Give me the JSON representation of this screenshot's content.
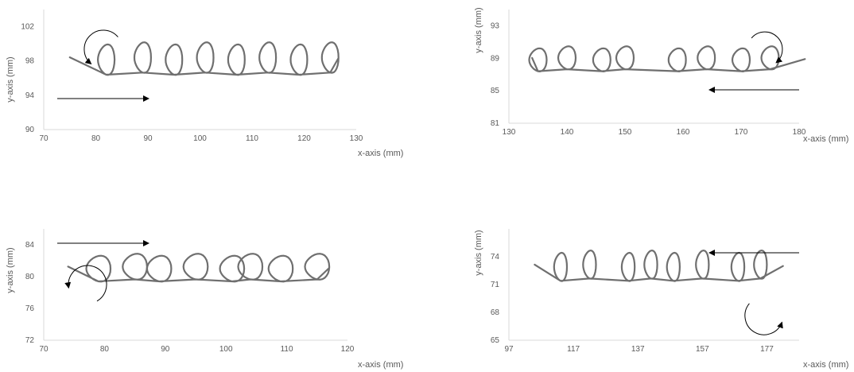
{
  "chart_data": [
    {
      "type": "line",
      "xlabel": "x-axis (mm)",
      "ylabel": "y-axis (mm)",
      "xlim": [
        70,
        130
      ],
      "ylim": [
        90,
        104
      ],
      "x_ticks": [
        70,
        80,
        90,
        100,
        110,
        120,
        130
      ],
      "y_ticks": [
        90,
        94,
        98,
        102
      ],
      "grid": false,
      "travel_direction": "right",
      "rotation": "counterclockwise",
      "series": [
        {
          "loop_centers_x": [
            82,
            89,
            95,
            101,
            107,
            113,
            119,
            125
          ],
          "baseline_y": 96.5,
          "loop_height": 3.5,
          "loop_width": 3.2,
          "x_start": 75,
          "x_end": 126.5
        }
      ]
    },
    {
      "type": "line",
      "xlabel": "x-axis (mm)",
      "ylabel": "y-axis (mm)",
      "xlim": [
        130,
        180
      ],
      "ylim": [
        81,
        95
      ],
      "x_ticks": [
        130,
        140,
        150,
        160,
        170,
        180
      ],
      "y_ticks": [
        81,
        85,
        89,
        93
      ],
      "grid": false,
      "travel_direction": "left",
      "rotation": "clockwise",
      "series": [
        {
          "loop_centers_x": [
            135,
            140,
            146,
            150,
            159,
            164,
            170,
            175
          ],
          "baseline_y": 87.5,
          "loop_height": 2.8,
          "loop_width": 3.0,
          "x_start": 134,
          "x_end": 181
        }
      ]
    },
    {
      "type": "line",
      "xlabel": "x-axis (mm)",
      "ylabel": "y-axis (mm)",
      "xlim": [
        70,
        120
      ],
      "ylim": [
        72,
        86
      ],
      "x_ticks": [
        70,
        80,
        90,
        100,
        110,
        120
      ],
      "y_ticks": [
        72,
        76,
        80,
        84
      ],
      "grid": false,
      "travel_direction": "right",
      "rotation": "counterclockwise",
      "series": [
        {
          "loop_centers_x": [
            79,
            85,
            89,
            95,
            101,
            104,
            109,
            115
          ],
          "baseline_y": 79.5,
          "loop_height": 3.2,
          "loop_width": 4.0,
          "x_start": 74,
          "x_end": 117
        }
      ]
    },
    {
      "type": "line",
      "xlabel": "x-axis (mm)",
      "ylabel": "y-axis (mm)",
      "xlim": [
        97,
        187
      ],
      "ylim": [
        65,
        77
      ],
      "x_ticks": [
        97,
        117,
        137,
        157,
        177
      ],
      "y_ticks": [
        65,
        68,
        71,
        74
      ],
      "grid": false,
      "travel_direction": "left",
      "rotation": "counterclockwise",
      "series": [
        {
          "loop_centers_x": [
            113,
            122,
            134,
            141,
            148,
            157,
            168,
            175
          ],
          "baseline_y": 71.5,
          "loop_height": 3.0,
          "loop_width": 4.0,
          "x_start": 105,
          "x_end": 182
        }
      ]
    }
  ]
}
